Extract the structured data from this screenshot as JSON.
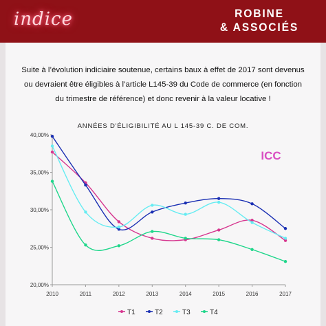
{
  "header": {
    "logo": "indice",
    "brand_line1": "ROBINE",
    "brand_line2": "& ASSOCIÉS"
  },
  "intro_lines": [
    "Suite à l’évolution indiciaire soutenue, certains baux à effet de 2017 sont devenus",
    "ou devraient être éligibles à l’article L145-39 du Code de commerce (en fonction",
    "du trimestre de référence) et donc revenir à la valeur locative  !"
  ],
  "chart_data": {
    "type": "line",
    "title": "ANNÉES D'ÉLIGIBILITÉ AU L 145-39 C. DE COM.",
    "annotation": "ICC",
    "annotation_color": "#d94fc2",
    "x": [
      2010,
      2011,
      2012,
      2013,
      2014,
      2015,
      2016,
      2017
    ],
    "x_labels": [
      "2010",
      "2011",
      "2012",
      "2013",
      "2014",
      "2015",
      "2016",
      "2017"
    ],
    "ylim": [
      0.2,
      0.4
    ],
    "y_ticks": [
      0.2,
      0.25,
      0.3,
      0.35,
      0.4
    ],
    "y_tick_labels": [
      "20,00%",
      "25,00%",
      "30,00%",
      "35,00%",
      "40,00%"
    ],
    "grid": false,
    "legend_position": "bottom",
    "series": [
      {
        "name": "T1",
        "color": "#d6368f",
        "values": [
          0.377,
          0.336,
          0.284,
          0.262,
          0.26,
          0.273,
          0.286,
          0.259
        ]
      },
      {
        "name": "T2",
        "color": "#1a2fb3",
        "values": [
          0.398,
          0.333,
          0.274,
          0.297,
          0.309,
          0.315,
          0.308,
          0.275
        ]
      },
      {
        "name": "T3",
        "color": "#66ecf2",
        "values": [
          0.385,
          0.297,
          0.277,
          0.306,
          0.294,
          0.31,
          0.283,
          0.262
        ]
      },
      {
        "name": "T4",
        "color": "#1ed68a",
        "values": [
          0.338,
          0.253,
          0.252,
          0.271,
          0.262,
          0.26,
          0.247,
          0.231
        ]
      }
    ]
  }
}
